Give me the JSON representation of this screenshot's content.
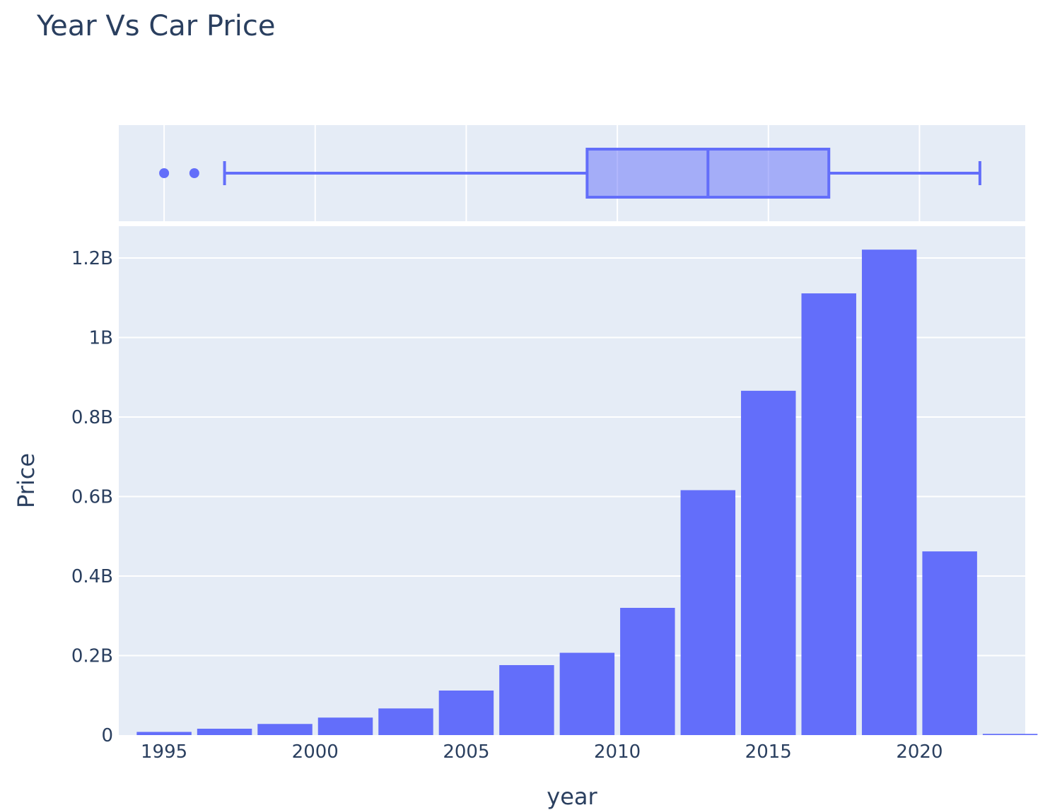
{
  "chart_data": {
    "title": "Year Vs Car Price",
    "xlabel": "year",
    "ylabel": "Price",
    "colors": {
      "bar": "#636efa",
      "plot_bg": "#e5ecf6",
      "grid": "#ffffff",
      "text": "#2a3f5f"
    },
    "histogram": {
      "type": "bar",
      "bin_width": 2,
      "xlim": [
        1993.5,
        2023.5
      ],
      "ylim": [
        0,
        1.28
      ],
      "y_unit": "B",
      "x": [
        1995,
        1997,
        1999,
        2001,
        2003,
        2005,
        2007,
        2009,
        2011,
        2013,
        2015,
        2017,
        2019,
        2021,
        2023
      ],
      "values": [
        0.008,
        0.016,
        0.028,
        0.044,
        0.067,
        0.112,
        0.176,
        0.207,
        0.32,
        0.616,
        0.866,
        1.111,
        1.221,
        0.462,
        0.003
      ],
      "x_ticks": [
        1995,
        2000,
        2005,
        2010,
        2015,
        2020
      ],
      "x_tick_labels": [
        "1995",
        "2000",
        "2005",
        "2010",
        "2015",
        "2020"
      ],
      "y_ticks": [
        0,
        0.2,
        0.4,
        0.6,
        0.8,
        1.0,
        1.2
      ],
      "y_tick_labels": [
        "0",
        "0.2B",
        "0.4B",
        "0.6B",
        "0.8B",
        "1B",
        "1.2B"
      ]
    },
    "box": {
      "type": "box",
      "orientation": "horizontal",
      "lower_fence": 1997,
      "q1": 2009,
      "median": 2013,
      "q3": 2017,
      "upper_fence": 2022,
      "outliers": [
        1995,
        1996
      ]
    }
  }
}
